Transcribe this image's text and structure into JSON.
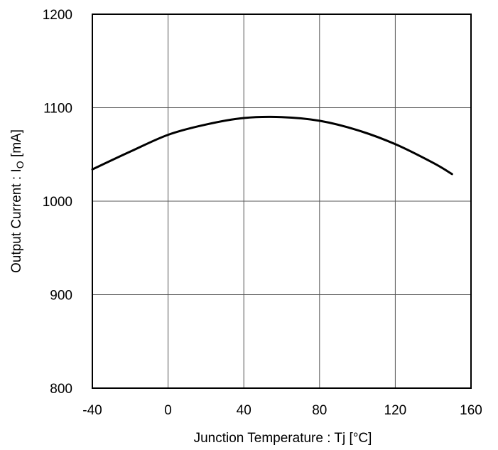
{
  "chart_data": {
    "type": "line",
    "xlabel": "Junction Temperature : Tj [°C]",
    "ylabel_main": "Output Current : I",
    "ylabel_sub": "O",
    "ylabel_unit": " [mA]",
    "xlim": [
      -40,
      160
    ],
    "ylim": [
      800,
      1200
    ],
    "xticks": [
      -40,
      0,
      40,
      80,
      120,
      160
    ],
    "yticks": [
      800,
      900,
      1000,
      1100,
      1200
    ],
    "grid": true,
    "series": [
      {
        "color": "#000000",
        "x": [
          -40,
          -20,
          0,
          20,
          40,
          60,
          80,
          100,
          120,
          140,
          150
        ],
        "y": [
          1034,
          1053,
          1071,
          1082,
          1089,
          1090,
          1086,
          1076,
          1061,
          1041,
          1029
        ]
      }
    ]
  }
}
